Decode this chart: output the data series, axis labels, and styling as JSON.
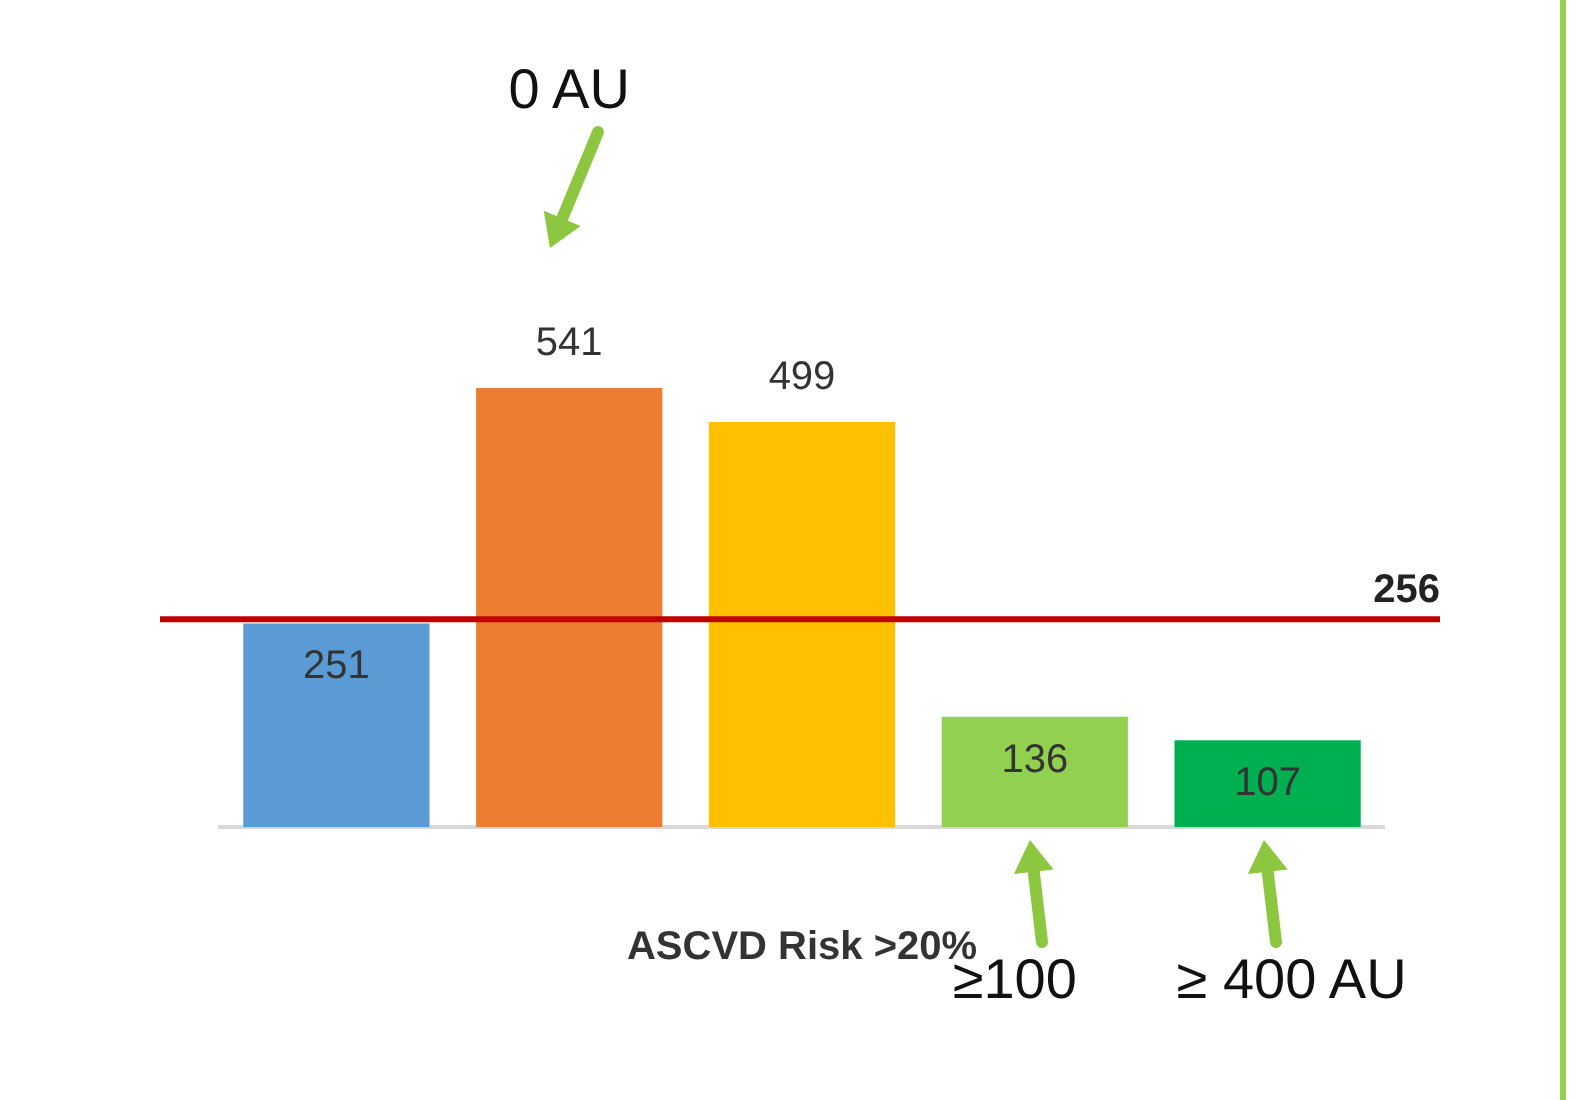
{
  "chart_data": {
    "type": "bar",
    "xlabel": "ASCVD Risk >20%",
    "categories": [
      null,
      null,
      null,
      null,
      null
    ],
    "values": [
      251,
      541,
      499,
      136,
      107
    ],
    "colors": [
      "#5b9bd5",
      "#ed7d31",
      "#ffc000",
      "#92d050",
      "#00b050"
    ],
    "data_labels": true,
    "ref_lines": [
      {
        "axis": "y",
        "value": 256,
        "label": "256",
        "color": "#c00000"
      }
    ],
    "annotations": [
      "0 AU",
      "≥100",
      "≥ 400 AU"
    ]
  }
}
